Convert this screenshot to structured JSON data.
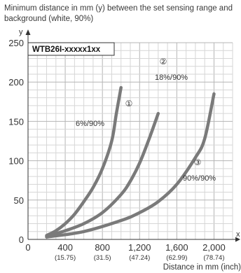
{
  "chart_data": {
    "type": "line",
    "title": "Minimum distance in mm (y) between the set sensing range and background (white, 90%)",
    "ylabel": "y",
    "xlabel": "Distance in mm (inch)",
    "x_axis_letter": "x",
    "model_label": "WTB26I-xxxxx1xx",
    "xlim": [
      0,
      2200
    ],
    "ylim": [
      0,
      250
    ],
    "x_ticks": [
      {
        "value": 0,
        "label": "0",
        "sub": ""
      },
      {
        "value": 400,
        "label": "400",
        "sub": "(15.75)"
      },
      {
        "value": 800,
        "label": "800",
        "sub": "(31.5)"
      },
      {
        "value": 1200,
        "label": "1,200",
        "sub": "(47.24)"
      },
      {
        "value": 1600,
        "label": "1,600",
        "sub": "(62.99)"
      },
      {
        "value": 2000,
        "label": "2,000",
        "sub": "(78.74)"
      }
    ],
    "y_ticks": [
      0,
      50,
      100,
      150,
      200,
      250
    ],
    "grid": true,
    "series": [
      {
        "name": "6%/90%",
        "marker": "①",
        "color": "#7a7a7a",
        "x": [
          200,
          300,
          400,
          500,
          600,
          700,
          800,
          900,
          950,
          1000
        ],
        "y": [
          5,
          11,
          20,
          32,
          48,
          66,
          90,
          125,
          160,
          193
        ]
      },
      {
        "name": "18%/90%",
        "marker": "②",
        "color": "#7a7a7a",
        "x": [
          200,
          400,
          600,
          800,
          1000,
          1100,
          1200,
          1300,
          1400
        ],
        "y": [
          4,
          11,
          20,
          34,
          57,
          74,
          97,
          127,
          160
        ]
      },
      {
        "name": "90%/90%",
        "marker": "③",
        "color": "#7a7a7a",
        "x": [
          200,
          600,
          1000,
          1200,
          1400,
          1600,
          1800,
          1900,
          2000
        ],
        "y": [
          3,
          10,
          24,
          34,
          48,
          70,
          104,
          128,
          185
        ]
      }
    ]
  }
}
